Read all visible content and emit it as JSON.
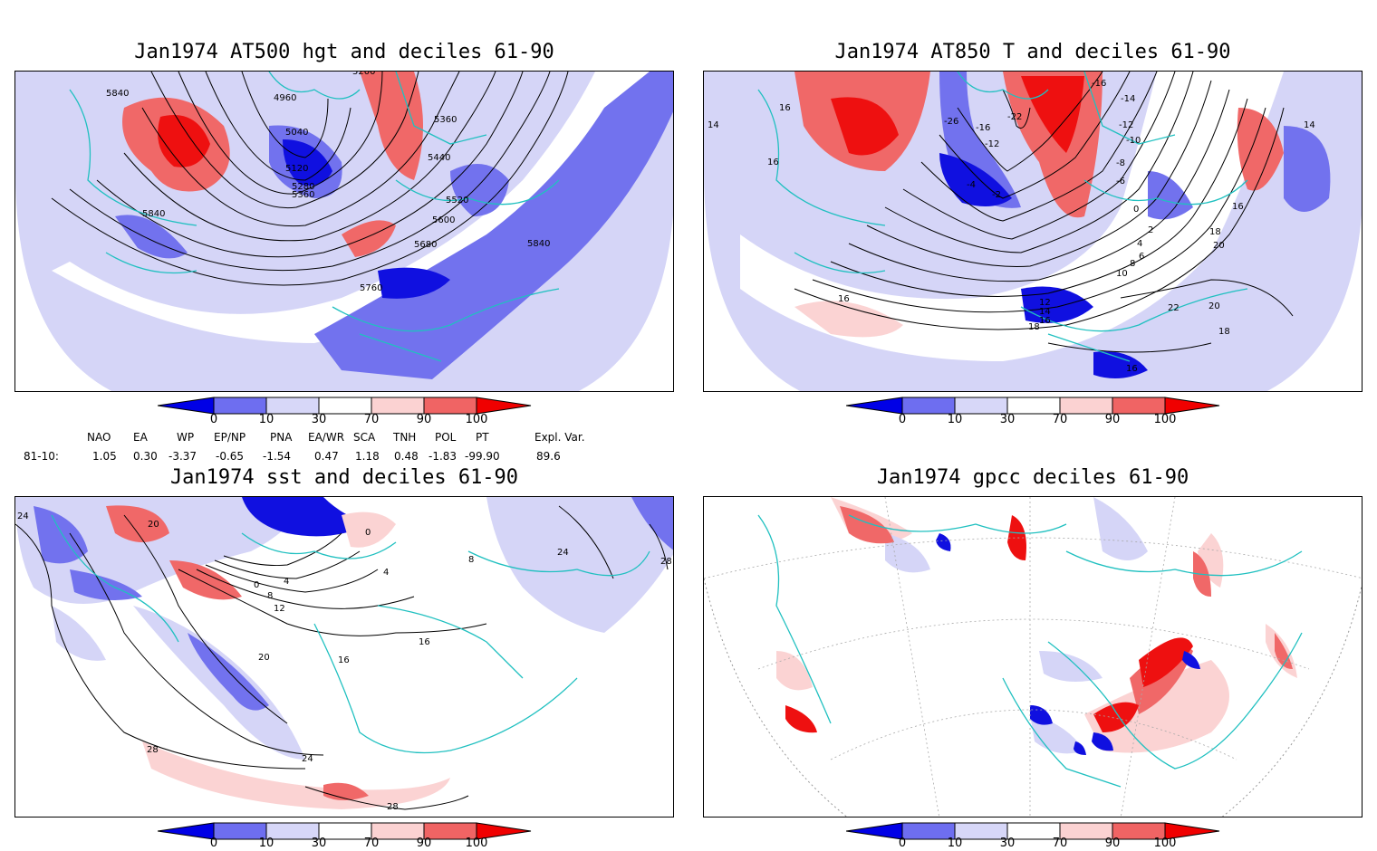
{
  "panels": [
    {
      "id": "p1",
      "title": "Jan1974 AT500 hgt and deciles 61-90",
      "contour_labels": [
        "5840",
        "4960",
        "5360",
        "5040",
        "5120",
        "5280",
        "5360",
        "5440",
        "5520",
        "5600",
        "5680",
        "5840",
        "5840",
        "5760",
        "5200"
      ]
    },
    {
      "id": "p2",
      "title": "Jan1974 AT850 T and deciles 61-90",
      "contour_labels": [
        "14",
        "16",
        "16",
        "-16",
        "-14",
        "-26",
        "-16",
        "-22",
        "-12",
        "-12",
        "-10",
        "-8",
        "-6",
        "-4",
        "-2",
        "0",
        "2",
        "4",
        "6",
        "8",
        "10",
        "12",
        "14",
        "16",
        "16",
        "18",
        "18",
        "20",
        "20",
        "22",
        "16",
        "16",
        "18",
        "14"
      ]
    },
    {
      "id": "p3",
      "title": "Jan1974 sst and deciles 61-90",
      "contour_labels": [
        "24",
        "20",
        "0",
        "4",
        "8",
        "12",
        "16",
        "16",
        "20",
        "24",
        "28",
        "28",
        "24",
        "28",
        "0",
        "4",
        "8"
      ]
    },
    {
      "id": "p4",
      "title": "Jan1974 gpcc deciles 61-90",
      "contour_labels": []
    }
  ],
  "colorbar": {
    "ticks": [
      "0",
      "10",
      "30",
      "70",
      "90",
      "100"
    ],
    "colors": {
      "c0": "#0000e6",
      "c1": "#6e6ef0",
      "c2": "#d7d7f8",
      "c3": "#ffffff",
      "c4": "#fbd2d2",
      "c5": "#f06464",
      "c6": "#f00000"
    }
  },
  "map_colors": {
    "coast": "#20c0c0",
    "deep_blue": "#1010e0",
    "mid_blue": "#7272ee",
    "light_blue": "#d5d5f7",
    "light_red": "#fbd3d3",
    "mid_red": "#f06868",
    "deep_red": "#ee1010"
  },
  "indices": {
    "headers": [
      "NAO",
      "EA",
      "WP",
      "EP/NP",
      "PNA",
      "EA/WR",
      "SCA",
      "TNH",
      "POL",
      "PT",
      "Expl. Var."
    ],
    "row_label": "81-10:",
    "values": [
      "1.05",
      "0.30",
      "-3.37",
      "-0.65",
      "-1.54",
      "0.47",
      "1.18",
      "0.48",
      "-1.83",
      "-99.90",
      "89.6"
    ]
  }
}
